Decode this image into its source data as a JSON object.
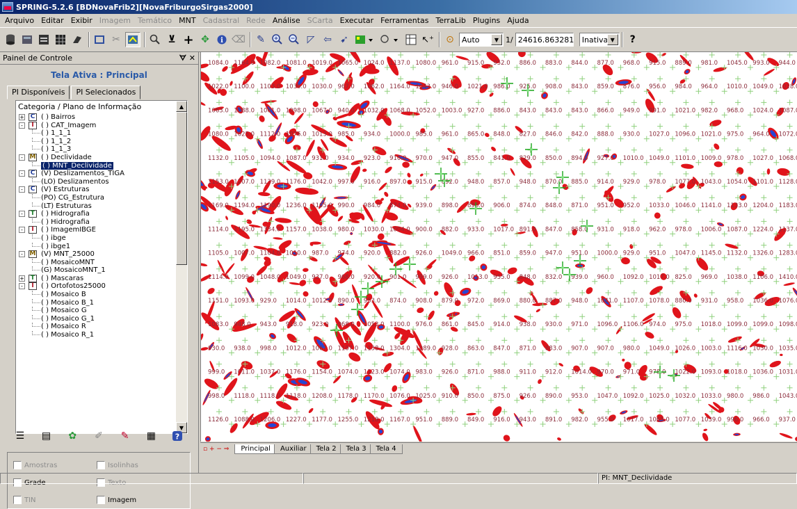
{
  "window": {
    "title": "SPRING-5.2.6 [BDNovaFrib2][NovaFriburgoSirgas2000]"
  },
  "menu": [
    {
      "label": "Arquivo",
      "enabled": true
    },
    {
      "label": "Editar",
      "enabled": true
    },
    {
      "label": "Exibir",
      "enabled": true
    },
    {
      "label": "Imagem",
      "enabled": false
    },
    {
      "label": "Temático",
      "enabled": false
    },
    {
      "label": "MNT",
      "enabled": true
    },
    {
      "label": "Cadastral",
      "enabled": false
    },
    {
      "label": "Rede",
      "enabled": false
    },
    {
      "label": "Análise",
      "enabled": true
    },
    {
      "label": "SCarta",
      "enabled": false
    },
    {
      "label": "Executar",
      "enabled": true
    },
    {
      "label": "Ferramentas",
      "enabled": true
    },
    {
      "label": "TerraLib",
      "enabled": true
    },
    {
      "label": "Plugins",
      "enabled": true
    },
    {
      "label": "Ajuda",
      "enabled": true
    }
  ],
  "toolbar": {
    "scale_mode": "Auto",
    "scale_prefix": "1/",
    "scale_value": "24616.863281",
    "state": "Inativa"
  },
  "panel": {
    "title": "Painel de Controle",
    "pin": "ᗊ ✕",
    "active_screen": "Tela Ativa : Principal",
    "tabs": [
      "PI Disponíveis",
      "PI Selecionados"
    ],
    "tree_header": "Categoria / Plano de Informação",
    "tree": [
      {
        "level": 0,
        "expand": "+",
        "cat": "C",
        "label": "( ) Bairros"
      },
      {
        "level": 0,
        "expand": "-",
        "cat": "I",
        "label": "( ) CAT_Imagem"
      },
      {
        "level": 1,
        "label": "( ) 1_1_1"
      },
      {
        "level": 1,
        "label": "( ) 1_1_2"
      },
      {
        "level": 1,
        "label": "( ) 1_1_3"
      },
      {
        "level": 0,
        "expand": "-",
        "cat": "M",
        "label": "( ) Declividade"
      },
      {
        "level": 1,
        "label": "( ) MNT_Declividade",
        "selected": true
      },
      {
        "level": 0,
        "expand": "-",
        "cat": "C",
        "label": "(V) Deslizamentos_TIGA"
      },
      {
        "level": 1,
        "label": "(LO) Deslizamentos"
      },
      {
        "level": 0,
        "expand": "-",
        "cat": "C",
        "label": "(V) Estruturas"
      },
      {
        "level": 1,
        "label": "(PO) CG_Estrutura"
      },
      {
        "level": 1,
        "label": "(LT) Estruturas"
      },
      {
        "level": 0,
        "expand": "-",
        "cat": "T",
        "label": "( ) Hidrografia"
      },
      {
        "level": 1,
        "label": "( ) Hidrografia"
      },
      {
        "level": 0,
        "expand": "-",
        "cat": "I",
        "label": "( ) ImagemIBGE"
      },
      {
        "level": 1,
        "label": "( ) ibge"
      },
      {
        "level": 1,
        "label": "( ) ibge1"
      },
      {
        "level": 0,
        "expand": "-",
        "cat": "M",
        "label": "(V) MNT_25000"
      },
      {
        "level": 1,
        "label": "( ) MosaicoMNT"
      },
      {
        "level": 1,
        "label": "(G) MosaicoMNT_1"
      },
      {
        "level": 0,
        "expand": "+",
        "cat": "T",
        "label": "( ) Mascaras"
      },
      {
        "level": 0,
        "expand": "-",
        "cat": "I",
        "label": "( ) Ortofotos25000"
      },
      {
        "level": 1,
        "label": "( ) Mosaico B"
      },
      {
        "level": 1,
        "label": "( ) Mosaico B_1"
      },
      {
        "level": 1,
        "label": "( ) Mosaico G"
      },
      {
        "level": 1,
        "label": "( ) Mosaico G_1"
      },
      {
        "level": 1,
        "label": "( ) Mosaico R"
      },
      {
        "level": 1,
        "label": "( ) Mosaico R_1"
      }
    ],
    "checks": {
      "amostras": "Amostras",
      "isolinhas": "Isolinhas",
      "grade": "Grade",
      "texto": "Texto",
      "tin": "TIN",
      "imagem": "Imagem"
    }
  },
  "map": {
    "grid_rows": [
      [
        "1084.0",
        "1164.0",
        "1082.0",
        "1081.0",
        "1019.0",
        "1065.0",
        "1024.0",
        "1137.0",
        "1080.0",
        "961.0",
        "915.0",
        "952.0",
        "886.0",
        "883.0",
        "844.0",
        "877.0",
        "968.0",
        "915.0",
        "889.0",
        "981.0",
        "1045.0",
        "993.0",
        "944.0"
      ],
      [
        "1022.0",
        "1100.0",
        "1103.0",
        "1030.0",
        "1030.0",
        "967.0",
        "1062.0",
        "1164.0",
        "1043.0",
        "946.0",
        "1021.0",
        "986.0",
        "925.0",
        "908.0",
        "843.0",
        "859.0",
        "876.0",
        "956.0",
        "984.0",
        "964.0",
        "1010.0",
        "1049.0",
        "1018.0"
      ],
      [
        "1063.0",
        "1088.0",
        "1061.0",
        "1098.0",
        "1067.0",
        "940.0",
        "1032.0",
        "1068.0",
        "1052.0",
        "1003.0",
        "927.0",
        "886.0",
        "843.0",
        "843.0",
        "843.0",
        "866.0",
        "949.0",
        "991.0",
        "1021.0",
        "982.0",
        "968.0",
        "1024.0",
        "1087.0"
      ],
      [
        "1080.0",
        "1025.0",
        "1112.0",
        "1076.0",
        "1013.0",
        "985.0",
        "934.0",
        "1000.0",
        "985.0",
        "961.0",
        "865.0",
        "848.0",
        "827.0",
        "846.0",
        "842.0",
        "888.0",
        "930.0",
        "1027.0",
        "1096.0",
        "1021.0",
        "975.0",
        "964.0",
        "1072.0"
      ],
      [
        "1132.0",
        "1105.0",
        "1094.0",
        "1087.0",
        "931.0",
        "934.0",
        "923.0",
        "910.0",
        "970.0",
        "947.0",
        "855.0",
        "841.0",
        "829.0",
        "850.0",
        "894.0",
        "927.0",
        "1010.0",
        "1049.0",
        "1101.0",
        "1009.0",
        "978.0",
        "1027.0",
        "1068.0"
      ],
      [
        "1153.0",
        "1207.0",
        "1139.0",
        "1176.0",
        "1042.0",
        "997.0",
        "916.0",
        "897.0",
        "915.0",
        "892.0",
        "948.0",
        "857.0",
        "948.0",
        "870.0",
        "885.0",
        "914.0",
        "929.0",
        "978.0",
        "1077.0",
        "1043.0",
        "1054.0",
        "1101.0",
        "1128.0"
      ],
      [
        "1169.0",
        "1194.0",
        "1190.0",
        "1236.0",
        "1105.0",
        "990.0",
        "984.0",
        "874.0",
        "939.0",
        "898.0",
        "896.0",
        "906.0",
        "874.0",
        "848.0",
        "871.0",
        "951.0",
        "952.0",
        "1033.0",
        "1046.0",
        "1141.0",
        "1133.0",
        "1204.0",
        "1183.0"
      ],
      [
        "1114.0",
        "1195.0",
        "1334.0",
        "1157.0",
        "1038.0",
        "980.0",
        "1030.0",
        "1004.0",
        "900.0",
        "882.0",
        "933.0",
        "1017.0",
        "891.0",
        "847.0",
        "858.0",
        "931.0",
        "918.0",
        "962.0",
        "978.0",
        "1006.0",
        "1087.0",
        "1224.0",
        "1137.0"
      ],
      [
        "1105.0",
        "1007.0",
        "1104.0",
        "1010.0",
        "987.0",
        "974.0",
        "920.0",
        "882.0",
        "926.0",
        "1049.0",
        "966.0",
        "851.0",
        "859.0",
        "947.0",
        "951.0",
        "1000.0",
        "929.0",
        "951.0",
        "1047.0",
        "1145.0",
        "1132.0",
        "1326.0",
        "1283.0"
      ],
      [
        "1114.0",
        "1099.0",
        "1048.0",
        "1049.0",
        "937.0",
        "968.0",
        "920.0",
        "901.0",
        "999.0",
        "926.0",
        "1013.0",
        "955.0",
        "848.0",
        "832.0",
        "939.0",
        "960.0",
        "1092.0",
        "1017.0",
        "825.0",
        "969.0",
        "1038.0",
        "1106.0",
        "1410.0"
      ],
      [
        "1151.0",
        "1093.0",
        "929.0",
        "1014.0",
        "1012.0",
        "890.0",
        "953.0",
        "874.0",
        "908.0",
        "879.0",
        "972.0",
        "869.0",
        "880.0",
        "887.0",
        "948.0",
        "1041.0",
        "1107.0",
        "1078.0",
        "880.0",
        "931.0",
        "958.0",
        "1036.0",
        "1076.0"
      ],
      [
        "1083.0",
        "948.0",
        "943.0",
        "918.0",
        "923.0",
        "968.0",
        "1053.0",
        "1100.0",
        "976.0",
        "861.0",
        "845.0",
        "914.0",
        "938.0",
        "930.0",
        "971.0",
        "1096.0",
        "1106.0",
        "974.0",
        "975.0",
        "1018.0",
        "1099.0",
        "1099.0",
        "1098.0"
      ],
      [
        "930.0",
        "938.0",
        "998.0",
        "1012.0",
        "1067.0",
        "1107.0",
        "1138.0",
        "1304.0",
        "1089.0",
        "928.0",
        "863.0",
        "847.0",
        "871.0",
        "883.0",
        "907.0",
        "907.0",
        "980.0",
        "1049.0",
        "1026.0",
        "1003.0",
        "1116.0",
        "1030.0",
        "1035.0"
      ],
      [
        "999.0",
        "1011.0",
        "1037.0",
        "1176.0",
        "1154.0",
        "1074.0",
        "1123.0",
        "1074.0",
        "983.0",
        "926.0",
        "871.0",
        "988.0",
        "911.0",
        "912.0",
        "1014.0",
        "970.0",
        "971.0",
        "978.0",
        "1022.0",
        "1093.0",
        "1018.0",
        "1036.0",
        "1031.0"
      ],
      [
        "998.0",
        "1118.0",
        "1118.0",
        "1118.0",
        "1208.0",
        "1178.0",
        "1170.0",
        "1076.0",
        "1025.0",
        "910.0",
        "850.0",
        "875.0",
        "926.0",
        "890.0",
        "953.0",
        "1047.0",
        "1092.0",
        "1025.0",
        "1032.0",
        "1033.0",
        "980.0",
        "986.0",
        "1043.0"
      ],
      [
        "1126.0",
        "1088.0",
        "1206.0",
        "1227.0",
        "1177.0",
        "1255.0",
        "1218.0",
        "1167.0",
        "951.0",
        "889.0",
        "849.0",
        "916.0",
        "943.0",
        "891.0",
        "982.0",
        "955.0",
        "1017.0",
        "1065.0",
        "1077.0",
        "1039.0",
        "996.0",
        "966.0",
        "937.0"
      ]
    ]
  },
  "bottom_tabs": [
    "Principal",
    "Auxiliar",
    "Tela 2",
    "Tela 3",
    "Tela 4"
  ],
  "bottom_tab_icons": "▫ + − ⇒",
  "status": {
    "left": "",
    "middle": "",
    "pi": "PI: MNT_Declividade"
  },
  "colors": {
    "label": "#8b2b3a",
    "cross": "#8fd07d",
    "blob_red": "#e0141b",
    "blob_blue": "#2646d4",
    "accent": "#0a246a"
  }
}
